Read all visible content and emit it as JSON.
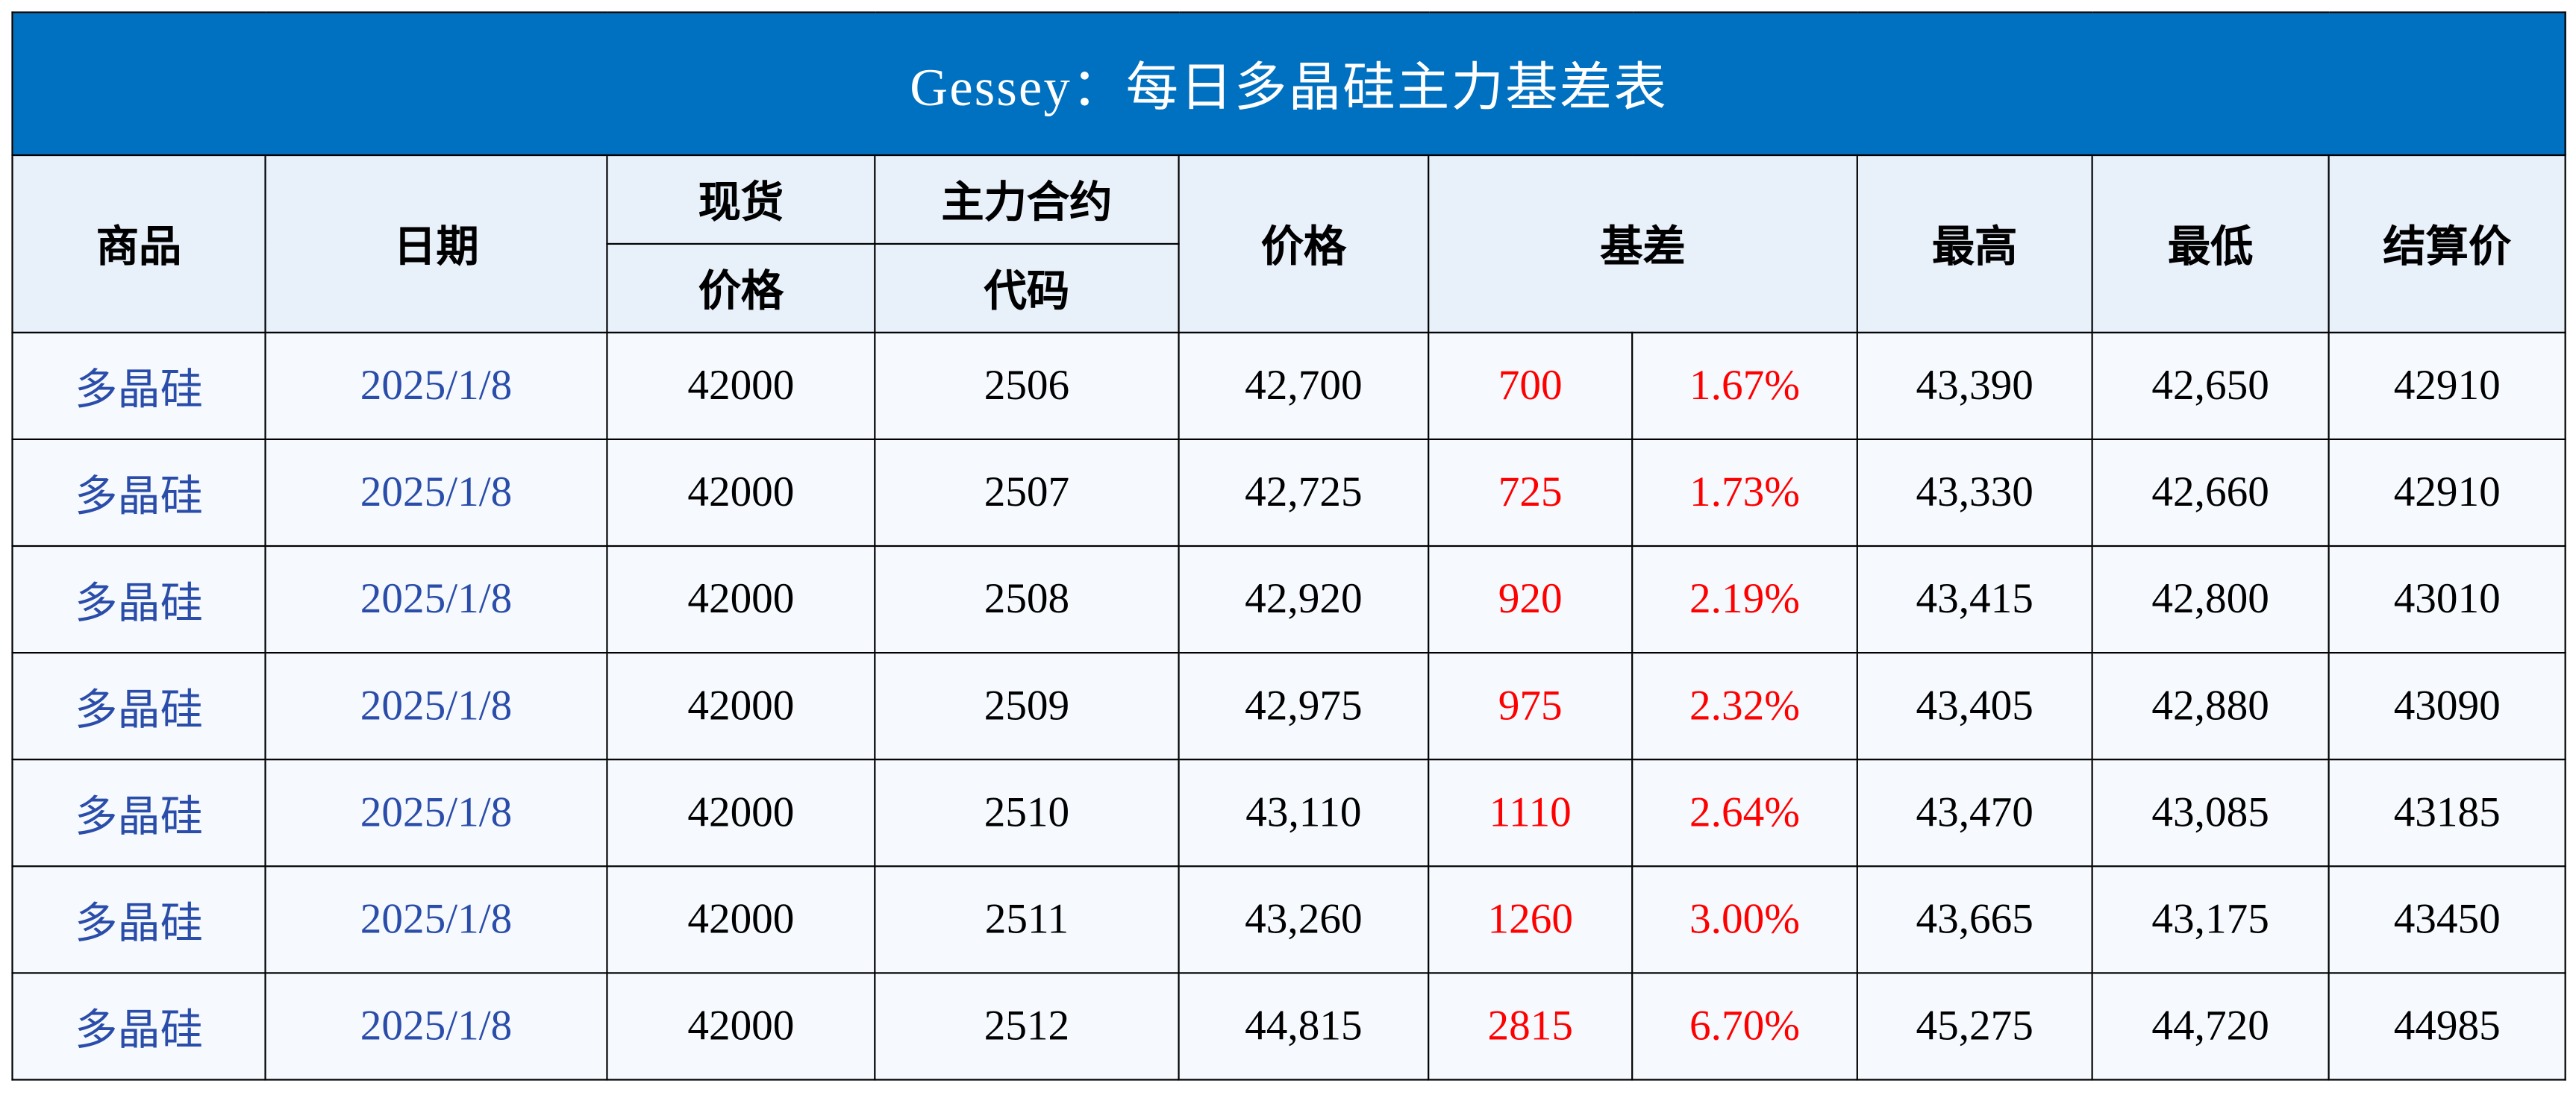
{
  "title": "Gessey：每日多晶硅主力基差表",
  "colors": {
    "title_bg": "#0070C0",
    "header_bg": "#E8F0FA",
    "row_bg": "#F6FAFE",
    "blue_text": "#2B4DAA",
    "red_text": "#FF0000"
  },
  "headers": {
    "product": "商品",
    "date": "日期",
    "spot_top": "现货",
    "spot_bottom": "价格",
    "contract_top": "主力合约",
    "contract_bottom": "代码",
    "price": "价格",
    "basis": "基差",
    "high": "最高",
    "low": "最低",
    "settle": "结算价"
  },
  "rows": [
    {
      "product": "多晶硅",
      "date": "2025/1/8",
      "spot": "42000",
      "code": "2506",
      "price": "42,700",
      "basis": "700",
      "basis_pct": "1.67%",
      "high": "43,390",
      "low": "42,650",
      "settle": "42910"
    },
    {
      "product": "多晶硅",
      "date": "2025/1/8",
      "spot": "42000",
      "code": "2507",
      "price": "42,725",
      "basis": "725",
      "basis_pct": "1.73%",
      "high": "43,330",
      "low": "42,660",
      "settle": "42910"
    },
    {
      "product": "多晶硅",
      "date": "2025/1/8",
      "spot": "42000",
      "code": "2508",
      "price": "42,920",
      "basis": "920",
      "basis_pct": "2.19%",
      "high": "43,415",
      "low": "42,800",
      "settle": "43010"
    },
    {
      "product": "多晶硅",
      "date": "2025/1/8",
      "spot": "42000",
      "code": "2509",
      "price": "42,975",
      "basis": "975",
      "basis_pct": "2.32%",
      "high": "43,405",
      "low": "42,880",
      "settle": "43090"
    },
    {
      "product": "多晶硅",
      "date": "2025/1/8",
      "spot": "42000",
      "code": "2510",
      "price": "43,110",
      "basis": "1110",
      "basis_pct": "2.64%",
      "high": "43,470",
      "low": "43,085",
      "settle": "43185"
    },
    {
      "product": "多晶硅",
      "date": "2025/1/8",
      "spot": "42000",
      "code": "2511",
      "price": "43,260",
      "basis": "1260",
      "basis_pct": "3.00%",
      "high": "43,665",
      "low": "43,175",
      "settle": "43450"
    },
    {
      "product": "多晶硅",
      "date": "2025/1/8",
      "spot": "42000",
      "code": "2512",
      "price": "44,815",
      "basis": "2815",
      "basis_pct": "6.70%",
      "high": "45,275",
      "low": "44,720",
      "settle": "44985"
    }
  ]
}
